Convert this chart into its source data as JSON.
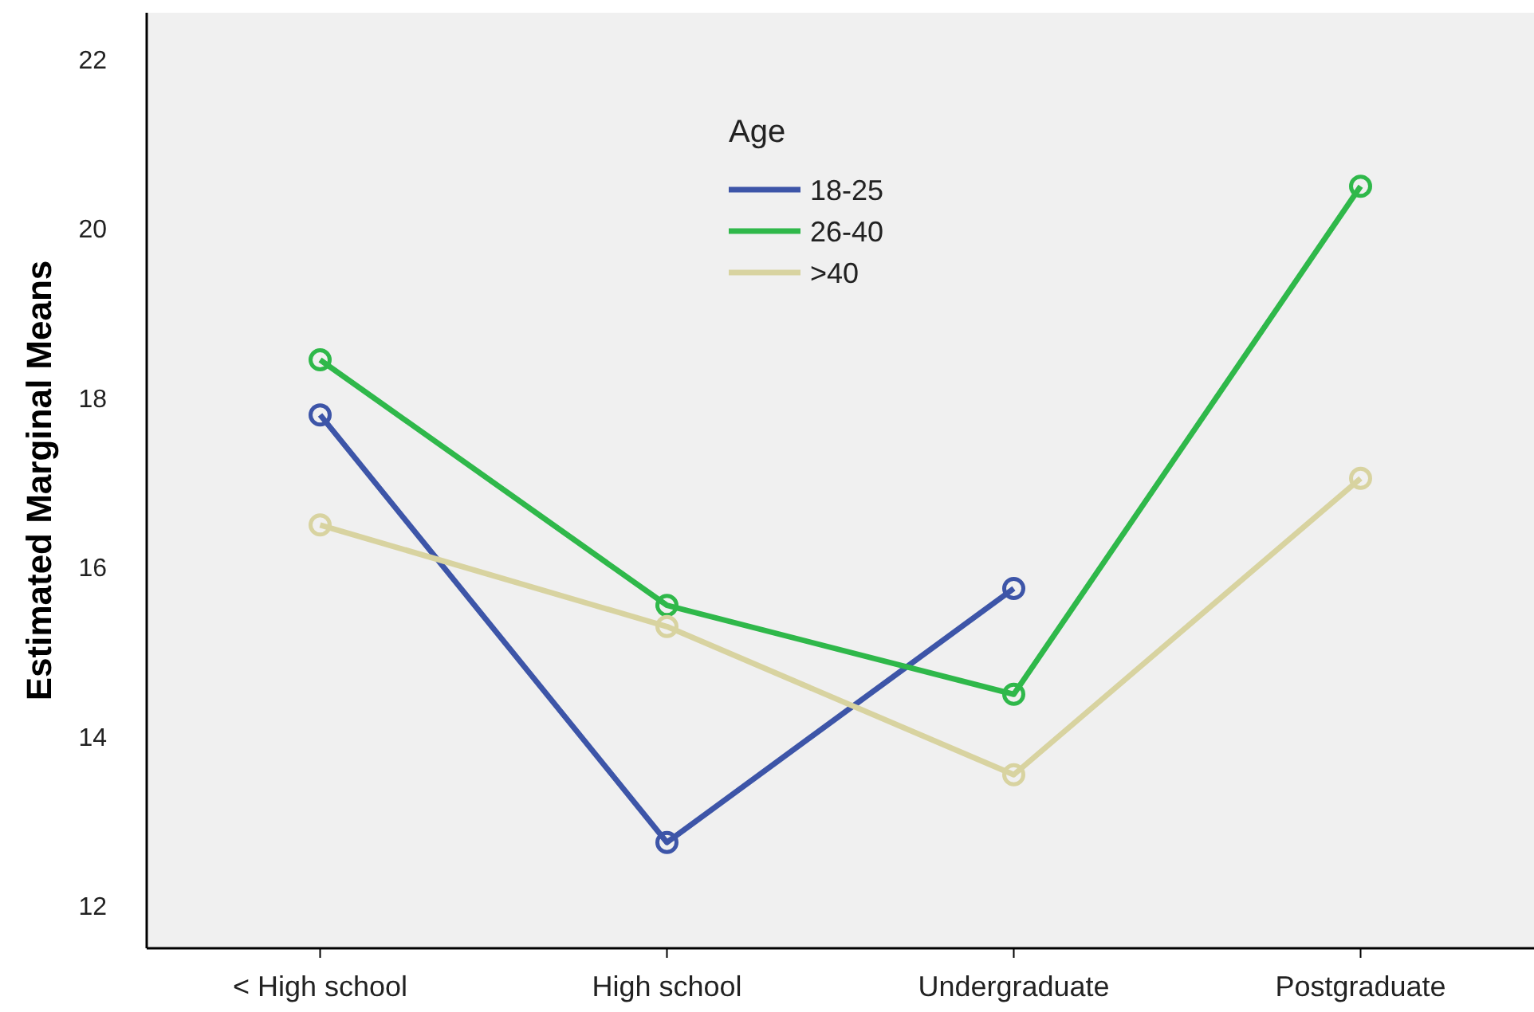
{
  "chart_data": {
    "type": "line",
    "ylabel": "Estimated Marginal Means",
    "legend_title": "Age",
    "legend": "top",
    "marker": "circle",
    "line_style": "solid",
    "grid": false,
    "categories": [
      "< High school",
      "High school",
      "Undergraduate",
      "Postgraduate"
    ],
    "ylim": [
      11.5,
      22.55
    ],
    "yticks": [
      12,
      14,
      16,
      18,
      20,
      22
    ],
    "series": [
      {
        "name": "18-25",
        "color": "#3d55a8",
        "values": [
          17.8,
          12.75,
          15.75,
          null
        ]
      },
      {
        "name": "26-40",
        "color": "#2fb84a",
        "values": [
          18.45,
          15.55,
          14.5,
          20.5
        ]
      },
      {
        "name": ">40",
        "color": "#d8d3a0",
        "values": [
          16.5,
          15.3,
          13.55,
          17.05
        ]
      }
    ]
  }
}
